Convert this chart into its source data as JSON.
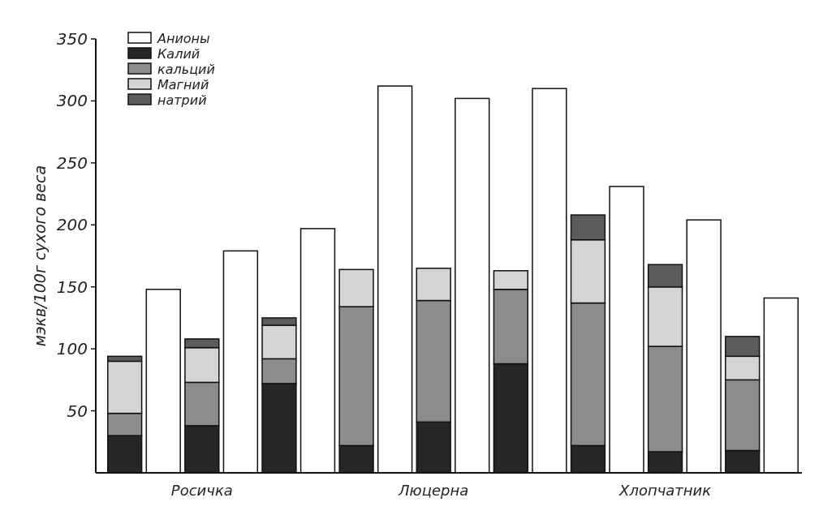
{
  "chart_data": {
    "type": "bar",
    "stacked": true,
    "ylabel": "мэкв/100г сухого веса",
    "categories": [
      null,
      null,
      "Росичка",
      null,
      null,
      null,
      null,
      null,
      "Люцерна",
      null,
      null,
      null,
      null,
      null,
      "Хлопчатник",
      null,
      null,
      null
    ],
    "ylim": [
      0,
      350
    ],
    "yticks": [
      50,
      100,
      150,
      200,
      250,
      300,
      350
    ],
    "legend": "top left",
    "grid": false,
    "series": [
      {
        "name": "Калий",
        "color": "#262626",
        "values": [
          30,
          null,
          38,
          null,
          72,
          null,
          22,
          null,
          41,
          null,
          88,
          null,
          22,
          null,
          17,
          null,
          18,
          null
        ]
      },
      {
        "name": "кальций",
        "color": "#8c8c8c",
        "values": [
          18,
          null,
          35,
          null,
          20,
          null,
          112,
          null,
          98,
          null,
          60,
          null,
          115,
          null,
          85,
          null,
          57,
          null
        ]
      },
      {
        "name": "Магний",
        "color": "#d4d4d4",
        "values": [
          42,
          null,
          28,
          null,
          27,
          null,
          30,
          null,
          26,
          null,
          15,
          null,
          51,
          null,
          48,
          null,
          19,
          null
        ]
      },
      {
        "name": "натрий",
        "color": "#5c5c5c",
        "values": [
          4,
          null,
          7,
          null,
          6,
          null,
          0,
          null,
          0,
          null,
          0,
          null,
          20,
          null,
          18,
          null,
          16,
          null
        ]
      },
      {
        "name": "Анионы",
        "color": "#ffffff",
        "values": [
          null,
          148,
          null,
          179,
          null,
          197,
          null,
          312,
          null,
          302,
          null,
          310,
          null,
          231,
          null,
          204,
          null,
          141
        ]
      }
    ]
  }
}
